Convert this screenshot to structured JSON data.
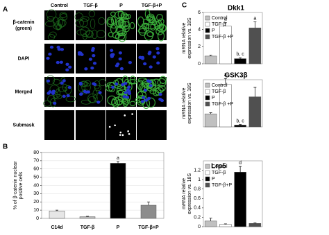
{
  "panels": {
    "a": "A",
    "b": "B",
    "c": "C"
  },
  "image_grid": {
    "columns": [
      "Control",
      "TGF-β",
      "P",
      "TGF-β+P"
    ],
    "rows": [
      [
        "β-catenin",
        "(green)"
      ],
      [
        "DAPI"
      ],
      [
        "Merged"
      ],
      [
        "Submask"
      ]
    ]
  },
  "chart_data": [
    {
      "type": "bar",
      "ylabel": [
        "% of β-catenin nuclear",
        "positive cells"
      ],
      "categories": [
        "C14d",
        "TGF-β",
        "P",
        "TGF-β+P"
      ],
      "colors": [
        "#e6e6e6",
        "#bdbdbd",
        "#000000",
        "#8c8c8c"
      ],
      "values": [
        9,
        2,
        67,
        16
      ],
      "errors": [
        1,
        0.5,
        2,
        4
      ],
      "annotations": [
        null,
        null,
        "a",
        null
      ],
      "ylim": [
        0,
        80
      ],
      "yticks": [
        0,
        10,
        20,
        30,
        40,
        50,
        60,
        70,
        80
      ],
      "grid": true
    },
    {
      "type": "bar",
      "title": "Dkk1",
      "ylabel": [
        "mRNA relative",
        "expression vs. 18S"
      ],
      "categories": [
        "Control",
        "TGF-β",
        "P",
        "TGF-β +P"
      ],
      "colors": [
        "#c0c0c0",
        "#ffffff",
        "#000000",
        "#505050"
      ],
      "values": [
        0.9,
        4.4,
        0.6,
        4.2
      ],
      "errors": [
        0.1,
        0.4,
        0.1,
        0.7
      ],
      "annotations": [
        null,
        "a",
        "b, c",
        "a"
      ],
      "ylim": [
        0,
        6
      ],
      "yticks": [
        0,
        2,
        4,
        6
      ],
      "legend": "upper left"
    },
    {
      "type": "bar",
      "title": "GSK3β",
      "ylabel": [
        "mRNA relative",
        "expression vs. 18S"
      ],
      "categories": [
        "Control",
        "TGF-β",
        "P",
        "TGF-β +P"
      ],
      "colors": [
        "#c0c0c0",
        "#ffffff",
        "#000000",
        "#505050"
      ],
      "values": [
        1.1,
        3.6,
        0.15,
        2.55
      ],
      "errors": [
        0.1,
        0.5,
        0.05,
        0.8
      ],
      "annotations": [
        null,
        "a",
        "b, c",
        null
      ],
      "ylim": [
        0,
        4
      ],
      "legend": "upper left"
    },
    {
      "type": "bar",
      "title": "Lrp5",
      "ylabel": [
        "mRNA relative",
        "expression vs. 18S"
      ],
      "categories": [
        "Control",
        "TGF-β",
        "P",
        "TGF-β+P"
      ],
      "colors": [
        "#c0c0c0",
        "#ffffff",
        "#000000",
        "#505050"
      ],
      "values": [
        0.12,
        0.05,
        1.16,
        0.07
      ],
      "errors": [
        0.06,
        0.01,
        0.12,
        0.01
      ],
      "annotations": [
        null,
        null,
        "d",
        null
      ],
      "ylim": [
        0,
        1.4
      ],
      "yticks": [
        0,
        0.2,
        0.4,
        0.6,
        0.8,
        1,
        1.2
      ],
      "legend": "upper left"
    }
  ]
}
